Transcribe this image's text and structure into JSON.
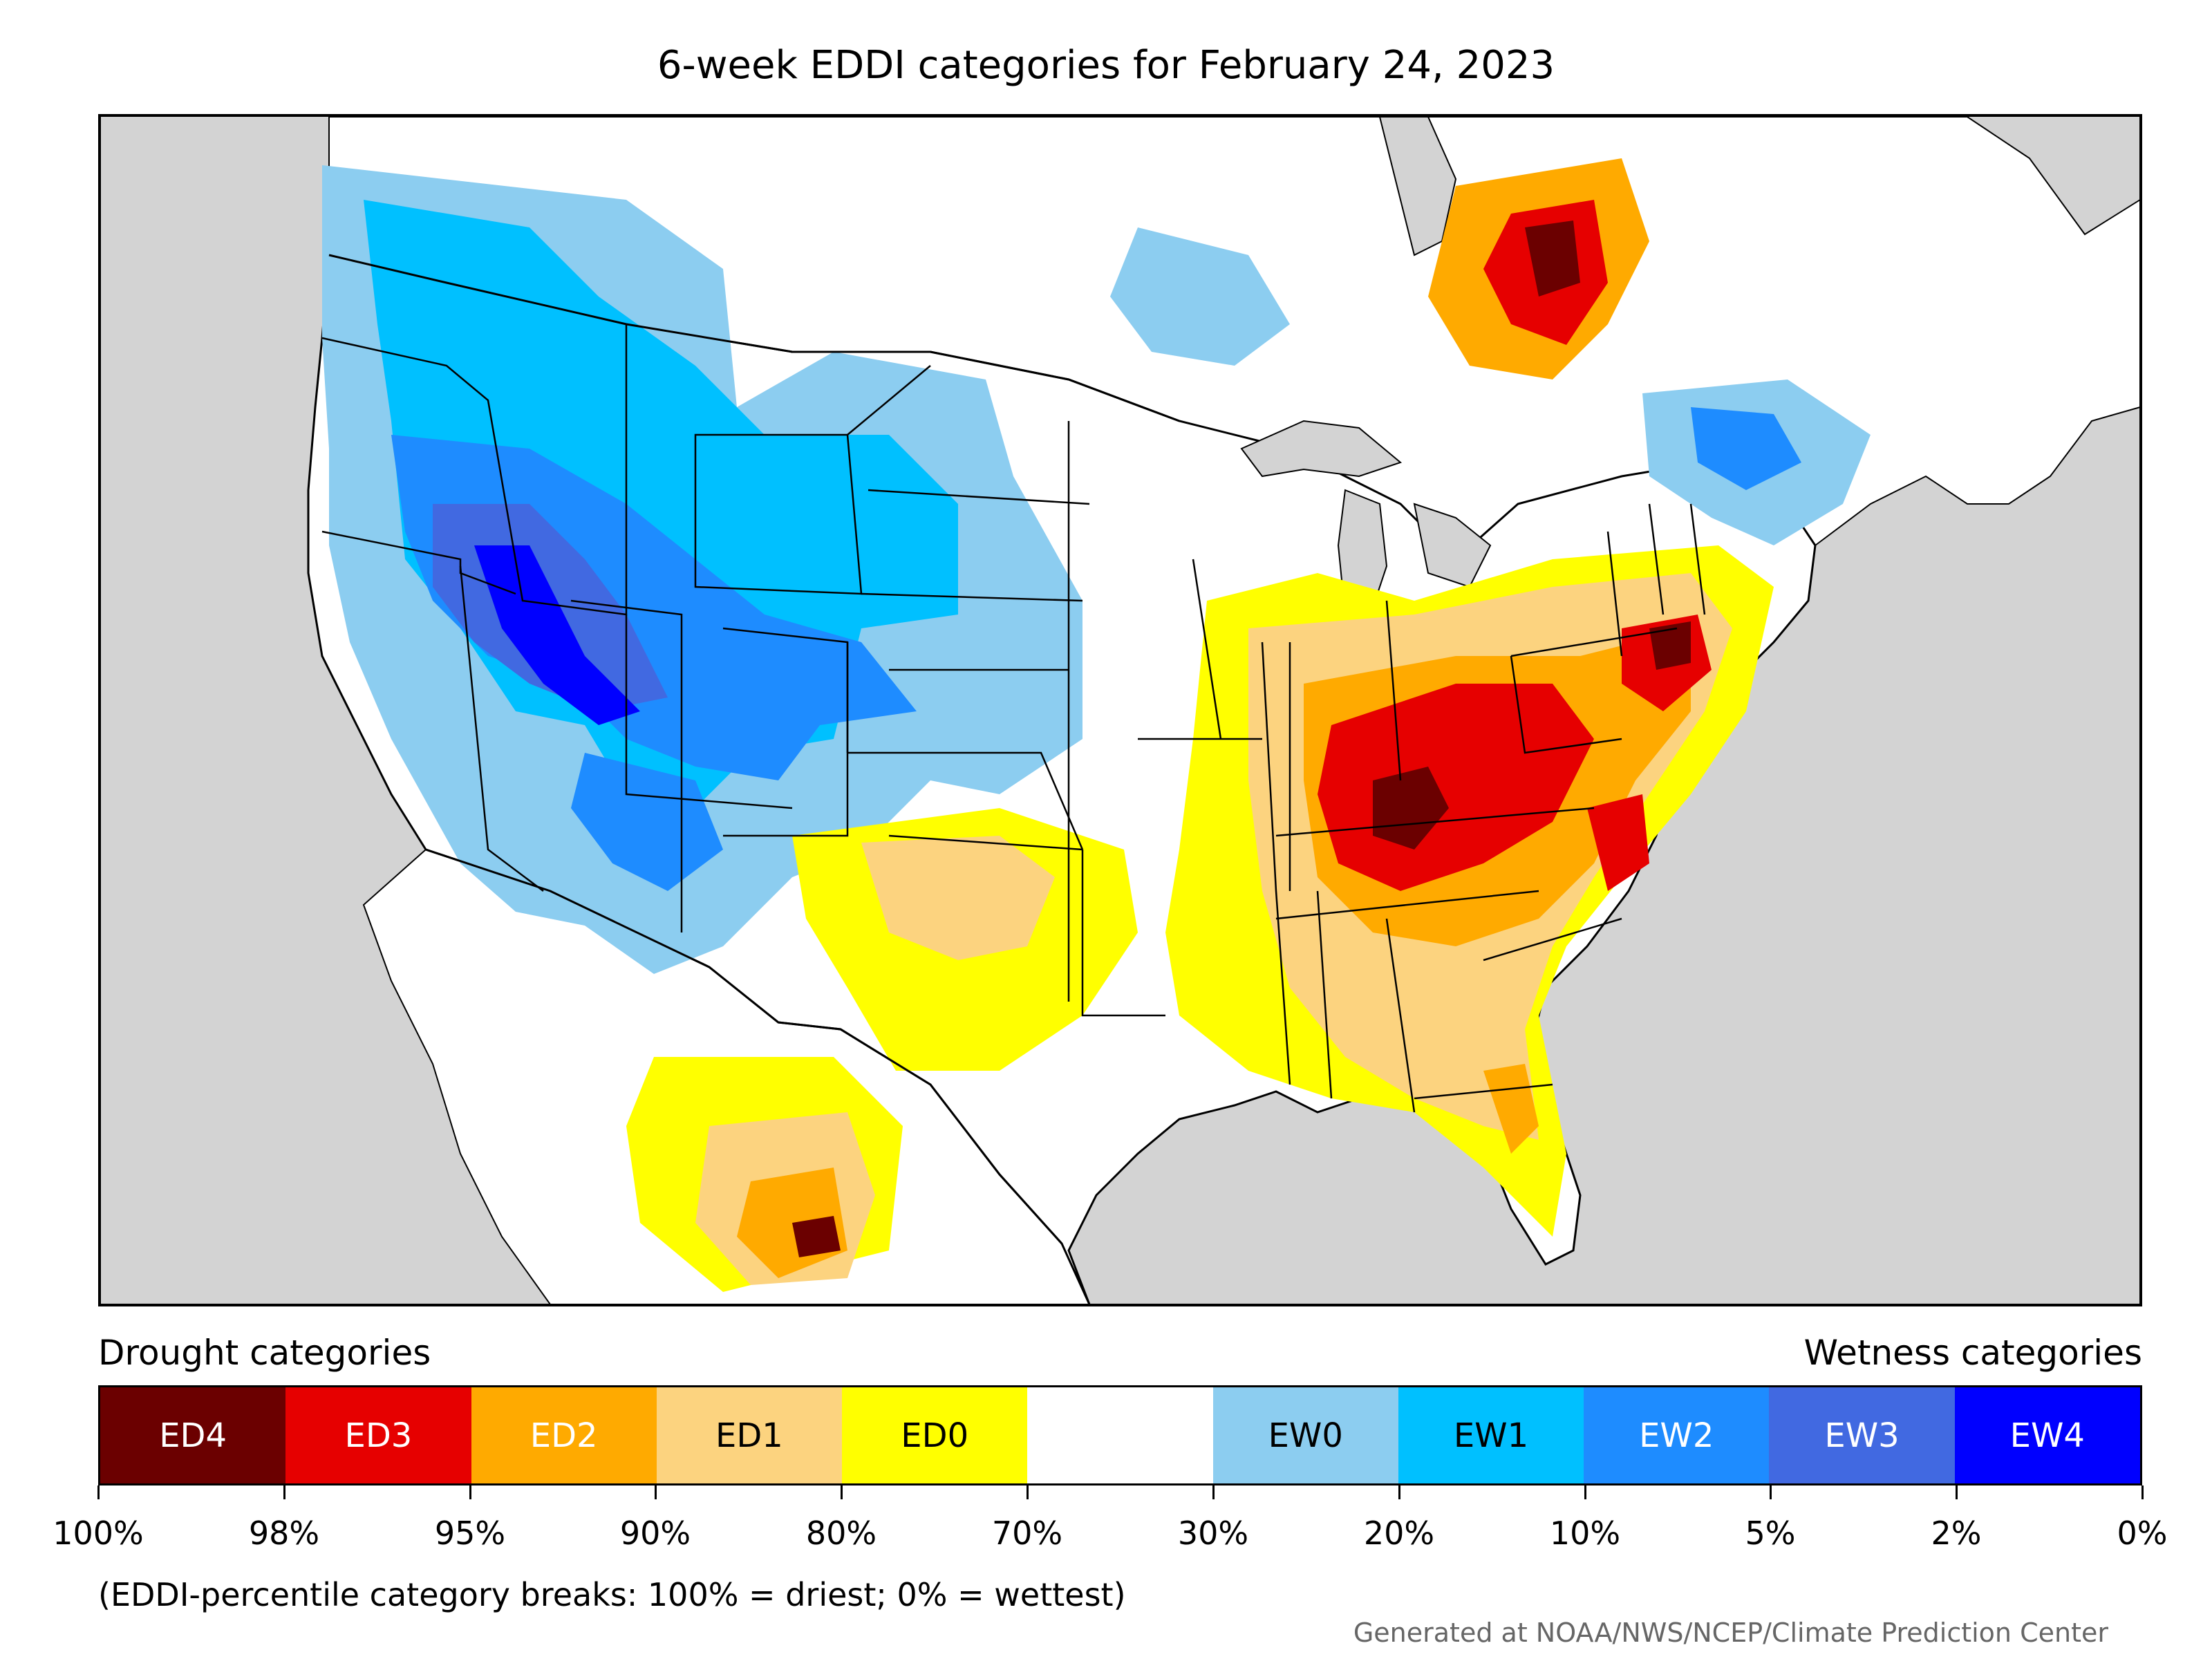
{
  "title": "6-week EDDI categories for February 24, 2023",
  "legend": {
    "drought_label": "Drought categories",
    "wetness_label": "Wetness categories",
    "categories": [
      {
        "label": "ED4",
        "color": "#6b0000",
        "text_color": "#ffffff"
      },
      {
        "label": "ED3",
        "color": "#e60000",
        "text_color": "#ffffff"
      },
      {
        "label": "ED2",
        "color": "#ffaa00",
        "text_color": "#ffffff"
      },
      {
        "label": "ED1",
        "color": "#fcd37f",
        "text_color": "#000000"
      },
      {
        "label": "ED0",
        "color": "#ffff00",
        "text_color": "#000000"
      },
      {
        "label": "",
        "color": "#ffffff",
        "text_color": "#000000"
      },
      {
        "label": "EW0",
        "color": "#8ccdf0",
        "text_color": "#000000"
      },
      {
        "label": "EW1",
        "color": "#00c0ff",
        "text_color": "#000000"
      },
      {
        "label": "EW2",
        "color": "#1e8cff",
        "text_color": "#ffffff"
      },
      {
        "label": "EW3",
        "color": "#4169e1",
        "text_color": "#ffffff"
      },
      {
        "label": "EW4",
        "color": "#0000ff",
        "text_color": "#ffffff"
      }
    ],
    "tick_labels": [
      "100%",
      "98%",
      "95%",
      "90%",
      "80%",
      "70%",
      "30%",
      "20%",
      "10%",
      "5%",
      "2%",
      "0%"
    ]
  },
  "note": "(EDDI-percentile category breaks: 100% = driest; 0% = wettest)",
  "credit": "Generated at NOAA/NWS/NCEP/Climate Prediction Center",
  "colors": {
    "background_gray": "#d3d3d3",
    "land": "#ffffff",
    "border": "#000000"
  }
}
